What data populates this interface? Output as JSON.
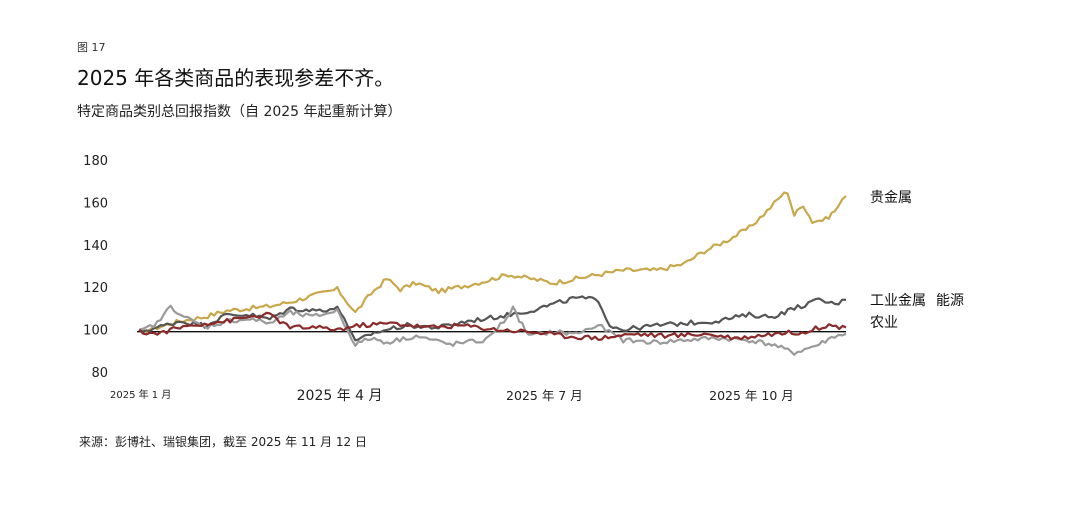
{
  "figure_label": "图 17",
  "title": "2025 年各类商品的表现参差不齐。",
  "subtitle": "特定商品类别总回报指数（自 2025 年起重新计算）",
  "source": "来源：彭博社、瑞银集团，截至 2025 年 11 月 12 日",
  "chart_data": {
    "type": "line",
    "y_ticks": [
      180,
      160,
      140,
      120,
      100,
      80
    ],
    "ylim": [
      80,
      180
    ],
    "x_ticks": [
      {
        "label": "2025 年 1 月",
        "date": "2025-01-01"
      },
      {
        "label": "2025 年 4 月",
        "date": "2025-04-01"
      },
      {
        "label": "2025 年 7 月",
        "date": "2025-07-01"
      },
      {
        "label": "2025 年 10 月",
        "date": "2025-10-01"
      }
    ],
    "baseline": 99,
    "grid": false,
    "series": [
      {
        "name": "贵金属",
        "color": "#c9a84c",
        "points": [
          [
            "2025-01-02",
            99
          ],
          [
            "2025-01-10",
            101
          ],
          [
            "2025-01-20",
            104
          ],
          [
            "2025-01-31",
            106
          ],
          [
            "2025-02-10",
            109
          ],
          [
            "2025-02-20",
            110
          ],
          [
            "2025-03-01",
            111
          ],
          [
            "2025-03-10",
            113
          ],
          [
            "2025-03-20",
            116
          ],
          [
            "2025-03-31",
            119
          ],
          [
            "2025-04-03",
            115
          ],
          [
            "2025-04-08",
            108
          ],
          [
            "2025-04-15",
            117
          ],
          [
            "2025-04-22",
            124
          ],
          [
            "2025-04-28",
            119
          ],
          [
            "2025-05-05",
            122
          ],
          [
            "2025-05-15",
            118
          ],
          [
            "2025-05-28",
            121
          ],
          [
            "2025-06-05",
            123
          ],
          [
            "2025-06-15",
            126
          ],
          [
            "2025-06-25",
            124
          ],
          [
            "2025-07-05",
            122
          ],
          [
            "2025-07-15",
            124
          ],
          [
            "2025-07-25",
            126
          ],
          [
            "2025-08-05",
            128
          ],
          [
            "2025-08-20",
            128
          ],
          [
            "2025-09-01",
            131
          ],
          [
            "2025-09-10",
            137
          ],
          [
            "2025-09-20",
            142
          ],
          [
            "2025-09-30",
            148
          ],
          [
            "2025-10-08",
            156
          ],
          [
            "2025-10-14",
            163
          ],
          [
            "2025-10-17",
            165
          ],
          [
            "2025-10-20",
            154
          ],
          [
            "2025-10-24",
            159
          ],
          [
            "2025-10-28",
            151
          ],
          [
            "2025-11-03",
            152
          ],
          [
            "2025-11-07",
            156
          ],
          [
            "2025-11-12",
            163
          ]
        ]
      },
      {
        "name": "工业金属",
        "color": "#555555",
        "points": [
          [
            "2025-01-02",
            99
          ],
          [
            "2025-01-10",
            101
          ],
          [
            "2025-01-20",
            104
          ],
          [
            "2025-01-31",
            102
          ],
          [
            "2025-02-10",
            107
          ],
          [
            "2025-02-20",
            107
          ],
          [
            "2025-03-01",
            105
          ],
          [
            "2025-03-10",
            110
          ],
          [
            "2025-03-20",
            109
          ],
          [
            "2025-03-31",
            110
          ],
          [
            "2025-04-03",
            106
          ],
          [
            "2025-04-08",
            94
          ],
          [
            "2025-04-15",
            98
          ],
          [
            "2025-04-22",
            100
          ],
          [
            "2025-05-01",
            102
          ],
          [
            "2025-05-15",
            101
          ],
          [
            "2025-05-28",
            104
          ],
          [
            "2025-06-10",
            106
          ],
          [
            "2025-06-25",
            109
          ],
          [
            "2025-07-05",
            112
          ],
          [
            "2025-07-15",
            115
          ],
          [
            "2025-07-25",
            114
          ],
          [
            "2025-07-30",
            102
          ],
          [
            "2025-08-05",
            100
          ],
          [
            "2025-08-20",
            102
          ],
          [
            "2025-09-01",
            103
          ],
          [
            "2025-09-15",
            104
          ],
          [
            "2025-09-30",
            107
          ],
          [
            "2025-10-10",
            106
          ],
          [
            "2025-10-20",
            110
          ],
          [
            "2025-10-31",
            114
          ],
          [
            "2025-11-07",
            112
          ],
          [
            "2025-11-12",
            114
          ]
        ]
      },
      {
        "name": "能源",
        "color": "#9a9a9a",
        "points": [
          [
            "2025-01-02",
            99
          ],
          [
            "2025-01-10",
            103
          ],
          [
            "2025-01-16",
            111
          ],
          [
            "2025-01-22",
            106
          ],
          [
            "2025-01-31",
            101
          ],
          [
            "2025-02-10",
            104
          ],
          [
            "2025-02-20",
            105
          ],
          [
            "2025-03-01",
            103
          ],
          [
            "2025-03-10",
            108
          ],
          [
            "2025-03-20",
            106
          ],
          [
            "2025-03-31",
            109
          ],
          [
            "2025-04-03",
            103
          ],
          [
            "2025-04-08",
            93
          ],
          [
            "2025-04-15",
            96
          ],
          [
            "2025-04-22",
            94
          ],
          [
            "2025-05-05",
            97
          ],
          [
            "2025-05-20",
            93
          ],
          [
            "2025-06-05",
            95
          ],
          [
            "2025-06-13",
            104
          ],
          [
            "2025-06-17",
            110
          ],
          [
            "2025-06-24",
            97
          ],
          [
            "2025-07-05",
            99
          ],
          [
            "2025-07-15",
            98
          ],
          [
            "2025-07-25",
            102
          ],
          [
            "2025-08-05",
            95
          ],
          [
            "2025-08-20",
            94
          ],
          [
            "2025-09-01",
            95
          ],
          [
            "2025-09-15",
            96
          ],
          [
            "2025-09-30",
            95
          ],
          [
            "2025-10-10",
            93
          ],
          [
            "2025-10-20",
            89
          ],
          [
            "2025-10-31",
            93
          ],
          [
            "2025-11-07",
            97
          ],
          [
            "2025-11-12",
            98
          ]
        ]
      },
      {
        "name": "农业",
        "color": "#8b2a2a",
        "points": [
          [
            "2025-01-02",
            99
          ],
          [
            "2025-01-10",
            98
          ],
          [
            "2025-01-20",
            101
          ],
          [
            "2025-01-31",
            103
          ],
          [
            "2025-02-10",
            104
          ],
          [
            "2025-02-20",
            106
          ],
          [
            "2025-03-01",
            107
          ],
          [
            "2025-03-10",
            101
          ],
          [
            "2025-03-20",
            101
          ],
          [
            "2025-03-31",
            100
          ],
          [
            "2025-04-10",
            102
          ],
          [
            "2025-04-25",
            103
          ],
          [
            "2025-05-10",
            101
          ],
          [
            "2025-05-25",
            102
          ],
          [
            "2025-06-10",
            100
          ],
          [
            "2025-06-25",
            99
          ],
          [
            "2025-07-10",
            97
          ],
          [
            "2025-07-25",
            96
          ],
          [
            "2025-08-10",
            98
          ],
          [
            "2025-08-25",
            97
          ],
          [
            "2025-09-10",
            98
          ],
          [
            "2025-09-25",
            96
          ],
          [
            "2025-10-10",
            98
          ],
          [
            "2025-10-25",
            99
          ],
          [
            "2025-11-03",
            102
          ],
          [
            "2025-11-12",
            101
          ]
        ]
      }
    ],
    "end_labels": [
      {
        "text": "贵金属",
        "series": "贵金属"
      },
      {
        "text": "工业金属",
        "series": "工业金属"
      },
      {
        "text": "能源",
        "series": "能源"
      },
      {
        "text": "农业",
        "series": "农业"
      }
    ]
  }
}
